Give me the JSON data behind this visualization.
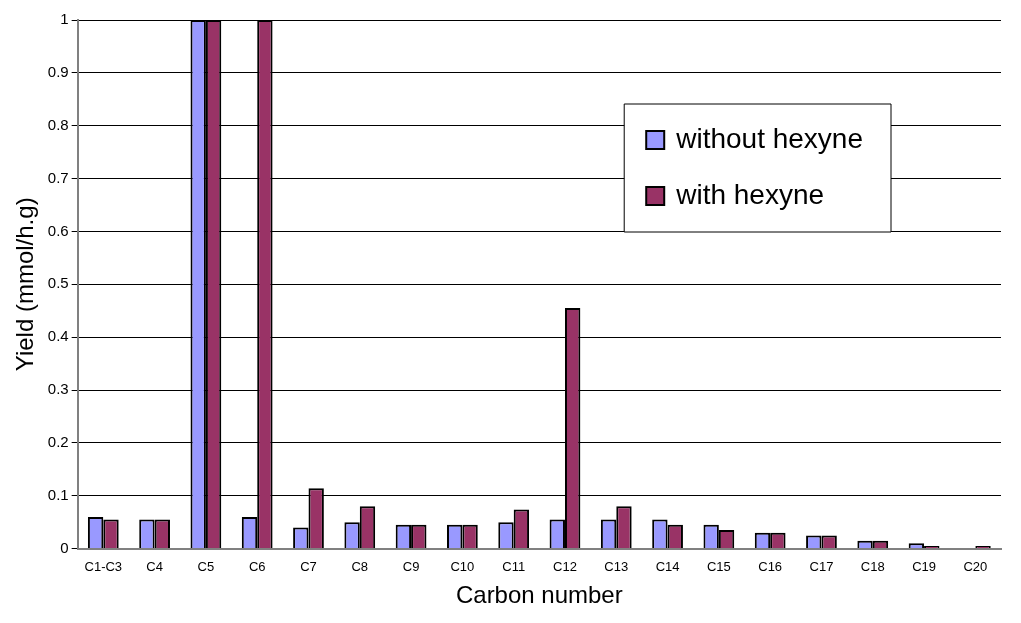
{
  "chart_data": {
    "type": "bar",
    "xlabel": "Carbon number",
    "ylabel": "Yield (mmol/h.g)",
    "categories": [
      "C1-C3",
      "C4",
      "C5",
      "C6",
      "C7",
      "C8",
      "C9",
      "C10",
      "C11",
      "C12",
      "C13",
      "C14",
      "C15",
      "C16",
      "C17",
      "C18",
      "C19",
      "C20"
    ],
    "series": [
      {
        "name": "without hexyne",
        "color": "#9999ff",
        "values": [
          0.06,
          0.055,
          1,
          0.06,
          0.04,
          0.05,
          0.045,
          0.045,
          0.05,
          0.055,
          0.055,
          0.055,
          0.045,
          0.03,
          0.025,
          0.015,
          0.01,
          null
        ]
      },
      {
        "name": "with hexyne",
        "color": "#993366",
        "values": [
          0.055,
          0.055,
          1,
          1,
          0.114,
          0.08,
          0.045,
          0.045,
          0.074,
          0.455,
          0.08,
          0.045,
          0.035,
          0.03,
          0.025,
          0.015,
          0.005,
          0.005
        ]
      }
    ],
    "ylim": [
      0,
      1
    ],
    "yticks": [
      0,
      0.1,
      0.2,
      0.3,
      0.4,
      0.5,
      0.6,
      0.7,
      0.8,
      0.9,
      1
    ],
    "grid": "y",
    "legend": "top right"
  }
}
